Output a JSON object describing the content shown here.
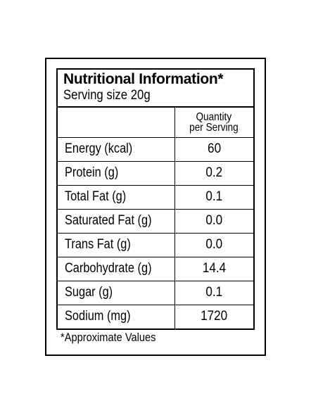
{
  "label": {
    "title": "Nutritional Information*",
    "serving_size": "Serving size 20g",
    "column_header_line1": "Quantity",
    "column_header_line2": "per Serving",
    "rows": [
      {
        "nutrient": "Energy (kcal)",
        "value": "60"
      },
      {
        "nutrient": "Protein (g)",
        "value": "0.2"
      },
      {
        "nutrient": "Total Fat (g)",
        "value": "0.1"
      },
      {
        "nutrient": "Saturated Fat (g)",
        "value": "0.0"
      },
      {
        "nutrient": "Trans Fat (g)",
        "value": "0.0"
      },
      {
        "nutrient": "Carbohydrate (g)",
        "value": "14.4"
      },
      {
        "nutrient": "Sugar (g)",
        "value": "0.1"
      },
      {
        "nutrient": "Sodium (mg)",
        "value": "1720"
      }
    ],
    "footnote": "*Approximate Values"
  }
}
